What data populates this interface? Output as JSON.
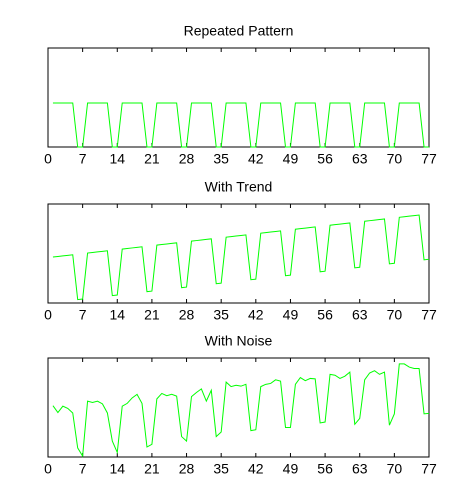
{
  "chart_data": [
    {
      "type": "line",
      "title": "Repeated Pattern",
      "x": [
        1,
        2,
        3,
        4,
        5,
        6,
        7,
        8,
        9,
        10,
        11,
        12,
        13,
        14,
        15,
        16,
        17,
        18,
        19,
        20,
        21,
        22,
        23,
        24,
        25,
        26,
        27,
        28,
        29,
        30,
        31,
        32,
        33,
        34,
        35,
        36,
        37,
        38,
        39,
        40,
        41,
        42,
        43,
        44,
        45,
        46,
        47,
        48,
        49,
        50,
        51,
        52,
        53,
        54,
        55,
        56,
        57,
        58,
        59,
        60,
        61,
        62,
        63,
        64,
        65,
        66,
        67,
        68,
        69,
        70,
        71,
        72,
        73,
        74,
        75,
        76,
        77
      ],
      "values": [
        1,
        1,
        1,
        1,
        1,
        0,
        0,
        1,
        1,
        1,
        1,
        1,
        0,
        0,
        1,
        1,
        1,
        1,
        1,
        0,
        0,
        1,
        1,
        1,
        1,
        1,
        0,
        0,
        1,
        1,
        1,
        1,
        1,
        0,
        0,
        1,
        1,
        1,
        1,
        1,
        0,
        0,
        1,
        1,
        1,
        1,
        1,
        0,
        0,
        1,
        1,
        1,
        1,
        1,
        0,
        0,
        1,
        1,
        1,
        1,
        1,
        0,
        0,
        1,
        1,
        1,
        1,
        1,
        0,
        0,
        1,
        1,
        1,
        1,
        1,
        0,
        0
      ],
      "color": "#00ff00",
      "xlim": [
        0,
        77
      ],
      "xticks": [
        0,
        7,
        14,
        21,
        28,
        35,
        42,
        49,
        56,
        63,
        70,
        77
      ],
      "ylim": [
        0,
        2.25
      ]
    },
    {
      "type": "line",
      "title": "With Trend",
      "x": [
        1,
        2,
        3,
        4,
        5,
        6,
        7,
        8,
        9,
        10,
        11,
        12,
        13,
        14,
        15,
        16,
        17,
        18,
        19,
        20,
        21,
        22,
        23,
        24,
        25,
        26,
        27,
        28,
        29,
        30,
        31,
        32,
        33,
        34,
        35,
        36,
        37,
        38,
        39,
        40,
        41,
        42,
        43,
        44,
        45,
        46,
        47,
        48,
        49,
        50,
        51,
        52,
        53,
        54,
        55,
        56,
        57,
        58,
        59,
        60,
        61,
        62,
        63,
        64,
        65,
        66,
        67,
        68,
        69,
        70,
        71,
        72,
        73,
        74,
        75,
        76,
        77
      ],
      "values": [
        1.0125,
        1.025,
        1.0375,
        1.05,
        1.0625,
        0.075,
        0.0875,
        1.1,
        1.1125,
        1.125,
        1.1375,
        1.15,
        0.1625,
        0.175,
        1.1875,
        1.2,
        1.2125,
        1.225,
        1.2375,
        0.25,
        0.2625,
        1.275,
        1.2875,
        1.3,
        1.3125,
        1.325,
        0.3375,
        0.35,
        1.3625,
        1.375,
        1.3875,
        1.4,
        1.4125,
        0.425,
        0.4375,
        1.45,
        1.4625,
        1.475,
        1.4875,
        1.5,
        0.5125,
        0.525,
        1.5375,
        1.55,
        1.5625,
        1.575,
        1.5875,
        0.6,
        0.6125,
        1.625,
        1.6375,
        1.65,
        1.6625,
        1.675,
        0.6875,
        0.7,
        1.7125,
        1.725,
        1.7375,
        1.75,
        1.7625,
        0.775,
        0.7875,
        1.8,
        1.8125,
        1.825,
        1.8375,
        1.85,
        0.8625,
        0.875,
        1.8875,
        1.9,
        1.9125,
        1.925,
        1.9375,
        0.95,
        0.9625
      ],
      "color": "#00ff00",
      "xlim": [
        0,
        77
      ],
      "xticks": [
        0,
        7,
        14,
        21,
        28,
        35,
        42,
        49,
        56,
        63,
        70,
        77
      ],
      "ylim": [
        0,
        2.18
      ]
    },
    {
      "type": "line",
      "title": "With Noise",
      "x": [
        1,
        2,
        3,
        4,
        5,
        6,
        7,
        8,
        9,
        10,
        11,
        12,
        13,
        14,
        15,
        16,
        17,
        18,
        19,
        20,
        21,
        22,
        23,
        24,
        25,
        26,
        27,
        28,
        29,
        30,
        31,
        32,
        33,
        34,
        35,
        36,
        37,
        38,
        39,
        40,
        41,
        42,
        43,
        44,
        45,
        46,
        47,
        48,
        49,
        50,
        51,
        52,
        53,
        54,
        55,
        56,
        57,
        58,
        59,
        60,
        61,
        62,
        63,
        64,
        65,
        66,
        67,
        68,
        69,
        70,
        71,
        72,
        73,
        74,
        75,
        76,
        77
      ],
      "values": [
        1.13,
        0.98,
        1.12,
        1.07,
        0.97,
        0.2,
        0.02,
        1.23,
        1.2,
        1.23,
        1.17,
        0.97,
        0.35,
        0.1,
        1.12,
        1.18,
        1.3,
        1.38,
        1.18,
        0.22,
        0.28,
        1.28,
        1.4,
        1.35,
        1.38,
        1.34,
        0.45,
        0.35,
        1.33,
        1.42,
        1.5,
        1.23,
        1.47,
        0.45,
        0.55,
        1.65,
        1.55,
        1.58,
        1.56,
        1.6,
        0.58,
        0.6,
        1.55,
        1.6,
        1.62,
        1.7,
        1.67,
        0.65,
        0.65,
        1.6,
        1.75,
        1.68,
        1.73,
        1.72,
        0.75,
        0.77,
        1.82,
        1.8,
        1.73,
        1.78,
        1.87,
        0.72,
        0.85,
        1.7,
        1.85,
        1.9,
        1.82,
        1.87,
        0.7,
        0.95,
        2.05,
        2.05,
        1.98,
        1.95,
        1.95,
        0.95,
        0.96
      ],
      "color": "#00ff00",
      "xlim": [
        0,
        77
      ],
      "xticks": [
        0,
        7,
        14,
        21,
        28,
        35,
        42,
        49,
        56,
        63,
        70,
        77
      ],
      "ylim": [
        0,
        2.18
      ]
    }
  ]
}
